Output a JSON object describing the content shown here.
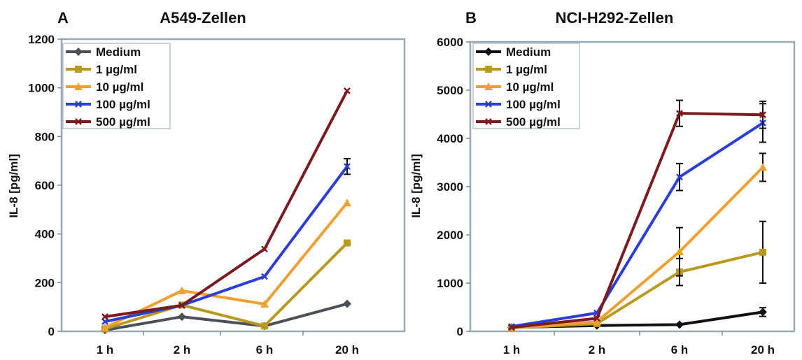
{
  "chart_data": [
    {
      "type": "line",
      "panel_label": "A",
      "title": "A549-Zellen",
      "xlabel": "",
      "ylabel": "IL-8 [pg/ml]",
      "ylim": [
        0,
        1200
      ],
      "yticks": [
        0,
        200,
        400,
        600,
        800,
        1000,
        1200
      ],
      "categories": [
        "1 h",
        "2 h",
        "6 h",
        "20 h"
      ],
      "grid": false,
      "legend_position": "top-left",
      "series": [
        {
          "name": "Medium",
          "color": "#4d5057",
          "marker": "diamond",
          "values": [
            5,
            60,
            22,
            113
          ],
          "errors": [
            0,
            0,
            0,
            0
          ]
        },
        {
          "name": "1 µg/ml",
          "color": "#b89a1e",
          "marker": "square",
          "values": [
            10,
            108,
            22,
            363
          ],
          "errors": [
            0,
            0,
            0,
            0
          ]
        },
        {
          "name": "10 µg/ml",
          "color": "#f0a030",
          "marker": "triangle",
          "values": [
            15,
            167,
            112,
            528
          ],
          "errors": [
            0,
            0,
            0,
            0
          ]
        },
        {
          "name": "100 µg/ml",
          "color": "#2b3fd6",
          "marker": "x",
          "values": [
            40,
            107,
            225,
            677
          ],
          "errors": [
            0,
            0,
            0,
            32
          ]
        },
        {
          "name": "500 µg/ml",
          "color": "#7b1a1f",
          "marker": "x",
          "values": [
            60,
            107,
            338,
            988
          ],
          "errors": [
            0,
            0,
            0,
            0
          ]
        }
      ]
    },
    {
      "type": "line",
      "panel_label": "B",
      "title": "NCI-H292-Zellen",
      "xlabel": "",
      "ylabel": "IL-8 [pg/ml]",
      "ylim": [
        0,
        6000
      ],
      "yticks": [
        0,
        1000,
        2000,
        3000,
        4000,
        5000,
        6000
      ],
      "categories": [
        "1 h",
        "2 h",
        "6 h",
        "20 h"
      ],
      "grid": false,
      "legend_position": "top-left",
      "series": [
        {
          "name": "Medium",
          "color": "#111111",
          "marker": "diamond",
          "values": [
            80,
            120,
            140,
            400
          ],
          "errors": [
            0,
            0,
            0,
            90
          ]
        },
        {
          "name": "1 µg/ml",
          "color": "#b89a1e",
          "marker": "square",
          "values": [
            70,
            160,
            1230,
            1640
          ],
          "errors": [
            0,
            0,
            280,
            640
          ]
        },
        {
          "name": "10 µg/ml",
          "color": "#f0a030",
          "marker": "triangle",
          "values": [
            70,
            200,
            1650,
            3400
          ],
          "errors": [
            0,
            0,
            500,
            290
          ]
        },
        {
          "name": "100 µg/ml",
          "color": "#2b3fd6",
          "marker": "x",
          "values": [
            100,
            380,
            3200,
            4320
          ],
          "errors": [
            0,
            0,
            280,
            400
          ]
        },
        {
          "name": "500 µg/ml",
          "color": "#7b1a1f",
          "marker": "x",
          "values": [
            80,
            270,
            4520,
            4490
          ],
          "errors": [
            0,
            0,
            270,
            280
          ]
        }
      ]
    }
  ]
}
